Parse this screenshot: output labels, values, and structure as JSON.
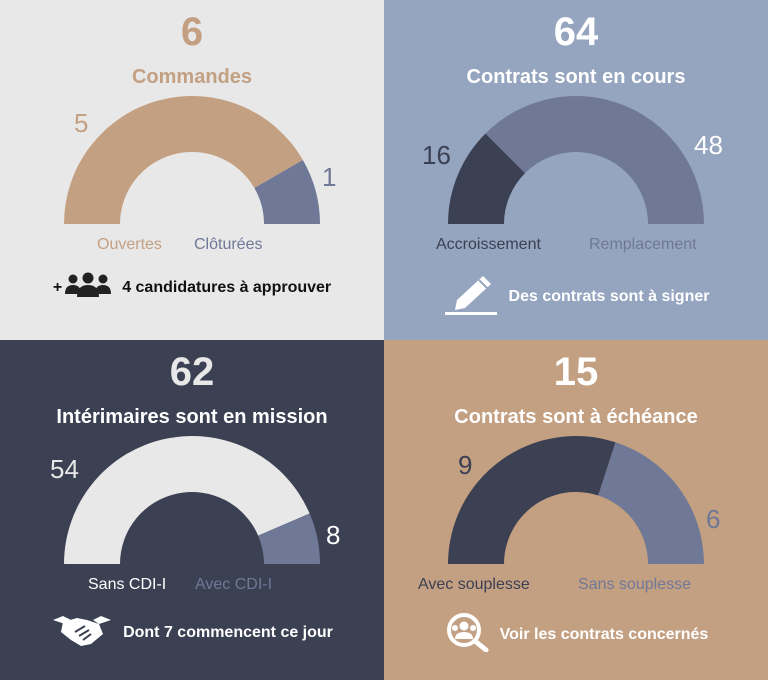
{
  "colors": {
    "tan": "#c4a083",
    "slate": "#6f7896",
    "navy": "#3b4052",
    "light": "#e8e8e8",
    "blue_bg": "#95a5bf",
    "white": "#ffffff"
  },
  "panels": {
    "commandes": {
      "total": "6",
      "title": "Commandes",
      "left_value": "5",
      "right_value": "1",
      "left_label": "Ouvertes",
      "right_label": "Clôturées",
      "left_fraction": 0.8333,
      "action_prefix": "+",
      "action_text": "4 candidatures à approuver",
      "action_icon": "group-icon"
    },
    "contrats_cours": {
      "total": "64",
      "title": "Contrats sont en cours",
      "left_value": "16",
      "right_value": "48",
      "left_label": "Accroissement",
      "right_label": "Remplacement",
      "left_fraction": 0.25,
      "action_text": "Des contrats sont à signer",
      "action_icon": "pen-sign-icon"
    },
    "interimaires": {
      "total": "62",
      "title": "Intérimaires sont en mission",
      "left_value": "54",
      "right_value": "8",
      "left_label": "Sans CDI-I",
      "right_label": "Avec CDI-I",
      "left_fraction": 0.871,
      "action_text": "Dont 7 commencent ce jour",
      "action_icon": "handshake-icon"
    },
    "echeance": {
      "total": "15",
      "title": "Contrats sont à échéance",
      "left_value": "9",
      "right_value": "6",
      "left_label": "Avec souplesse",
      "right_label": "Sans souplesse",
      "left_fraction": 0.6,
      "action_text": "Voir les contrats concernés",
      "action_icon": "search-people-icon"
    }
  }
}
